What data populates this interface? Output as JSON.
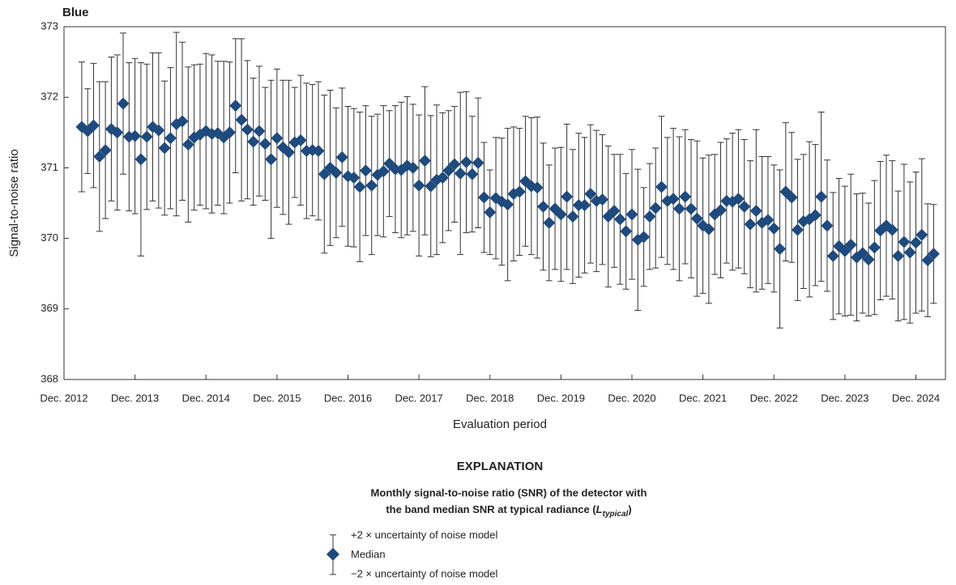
{
  "chart_data": {
    "type": "errorbar",
    "title": "Blue",
    "x_label": "Evaluation period",
    "y_label": "Signal-to-noise ratio",
    "x": [
      "2013-03",
      "2013-04",
      "2013-05",
      "2013-06",
      "2013-07",
      "2013-08",
      "2013-09",
      "2013-10",
      "2013-11",
      "2013-12",
      "2014-01",
      "2014-02",
      "2014-03",
      "2014-04",
      "2014-05",
      "2014-06",
      "2014-07",
      "2014-08",
      "2014-09",
      "2014-10",
      "2014-11",
      "2014-12",
      "2015-01",
      "2015-02",
      "2015-03",
      "2015-04",
      "2015-05",
      "2015-06",
      "2015-07",
      "2015-08",
      "2015-09",
      "2015-10",
      "2015-11",
      "2015-12",
      "2016-01",
      "2016-02",
      "2016-03",
      "2016-04",
      "2016-05",
      "2016-06",
      "2016-07",
      "2016-08",
      "2016-09",
      "2016-10",
      "2016-11",
      "2016-12",
      "2017-01",
      "2017-02",
      "2017-03",
      "2017-04",
      "2017-05",
      "2017-06",
      "2017-07",
      "2017-08",
      "2017-09",
      "2017-10",
      "2017-11",
      "2017-12",
      "2018-01",
      "2018-02",
      "2018-03",
      "2018-04",
      "2018-05",
      "2018-06",
      "2018-07",
      "2018-08",
      "2018-09",
      "2018-10",
      "2018-11",
      "2018-12",
      "2019-01",
      "2019-02",
      "2019-03",
      "2019-04",
      "2019-05",
      "2019-06",
      "2019-07",
      "2019-08",
      "2019-09",
      "2019-10",
      "2019-11",
      "2019-12",
      "2020-01",
      "2020-02",
      "2020-03",
      "2020-04",
      "2020-05",
      "2020-06",
      "2020-07",
      "2020-08",
      "2020-09",
      "2020-10",
      "2020-11",
      "2020-12",
      "2021-01",
      "2021-02",
      "2021-03",
      "2021-04",
      "2021-05",
      "2021-06",
      "2021-07",
      "2021-08",
      "2021-09",
      "2021-10",
      "2021-11",
      "2021-12",
      "2022-01",
      "2022-02",
      "2022-03",
      "2022-04",
      "2022-05",
      "2022-06",
      "2022-07",
      "2022-08",
      "2022-09",
      "2022-10",
      "2022-11",
      "2022-12",
      "2023-01",
      "2023-02",
      "2023-03",
      "2023-04",
      "2023-05",
      "2023-06",
      "2023-07",
      "2023-08",
      "2023-09",
      "2023-10",
      "2023-11",
      "2023-12",
      "2024-01",
      "2024-02",
      "2024-03",
      "2024-04",
      "2024-05",
      "2024-06",
      "2024-07",
      "2024-08",
      "2024-09",
      "2024-10",
      "2024-11",
      "2024-12",
      "2025-01",
      "2025-02",
      "2025-03"
    ],
    "series": [
      {
        "name": "Median",
        "color": "#1f4a7d",
        "values": [
          371.58,
          371.52,
          371.6,
          371.16,
          371.25,
          371.55,
          371.5,
          371.91,
          371.44,
          371.45,
          371.12,
          371.44,
          371.58,
          371.53,
          371.28,
          371.42,
          371.62,
          371.66,
          371.33,
          371.43,
          371.47,
          371.52,
          371.48,
          371.49,
          371.43,
          371.5,
          371.88,
          371.68,
          371.54,
          371.37,
          371.52,
          371.34,
          371.12,
          371.42,
          371.29,
          371.22,
          371.36,
          371.39,
          371.24,
          371.25,
          371.24,
          370.91,
          371.0,
          370.93,
          371.15,
          370.88,
          370.86,
          370.73,
          370.96,
          370.75,
          370.9,
          370.95,
          371.06,
          370.98,
          370.97,
          371.03,
          371.0,
          370.75,
          371.1,
          370.74,
          370.83,
          370.86,
          370.96,
          371.05,
          370.92,
          371.08,
          370.91,
          371.07,
          370.58,
          370.37,
          370.57,
          370.52,
          370.48,
          370.63,
          370.66,
          370.81,
          370.74,
          370.72,
          370.45,
          370.22,
          370.42,
          370.34,
          370.59,
          370.31,
          370.47,
          370.47,
          370.63,
          370.53,
          370.55,
          370.31,
          370.39,
          370.27,
          370.1,
          370.34,
          369.98,
          370.02,
          370.31,
          370.43,
          370.73,
          370.53,
          370.56,
          370.42,
          370.59,
          370.42,
          370.28,
          370.18,
          370.13,
          370.34,
          370.4,
          370.53,
          370.52,
          370.56,
          370.45,
          370.2,
          370.39,
          370.22,
          370.26,
          370.14,
          369.85,
          370.66,
          370.58,
          370.12,
          370.24,
          370.27,
          370.33,
          370.59,
          370.18,
          369.75,
          369.89,
          369.82,
          369.91,
          369.73,
          369.79,
          369.7,
          369.87,
          370.11,
          370.18,
          370.12,
          369.75,
          369.95,
          369.8,
          369.94,
          370.05,
          369.69,
          369.78
        ],
        "errors": [
          0.92,
          0.6,
          0.88,
          1.06,
          0.97,
          1.02,
          1.1,
          1.0,
          1.05,
          1.1,
          1.37,
          1.03,
          1.05,
          1.1,
          0.95,
          1.0,
          1.3,
          1.12,
          1.1,
          1.03,
          1.0,
          1.1,
          1.12,
          1.02,
          1.08,
          1.0,
          0.95,
          1.15,
          0.98,
          0.9,
          0.92,
          0.8,
          1.12,
          0.98,
          0.95,
          1.02,
          0.78,
          0.92,
          0.96,
          0.93,
          0.98,
          1.12,
          1.1,
          0.92,
          0.98,
          0.99,
          0.98,
          1.06,
          0.92,
          0.98,
          0.86,
          0.93,
          0.75,
          0.9,
          0.96,
          0.98,
          0.9,
          1.0,
          1.05,
          1.0,
          1.06,
          0.92,
          0.85,
          0.82,
          1.15,
          1.0,
          0.82,
          0.92,
          0.78,
          0.6,
          0.86,
          0.9,
          1.08,
          0.95,
          0.9,
          0.92,
          0.97,
          1.0,
          0.9,
          0.82,
          0.86,
          0.95,
          1.03,
          0.95,
          1.02,
          0.96,
          0.98,
          1.0,
          0.92,
          1.0,
          0.8,
          0.92,
          0.82,
          0.92,
          1.0,
          0.7,
          0.75,
          0.85,
          1.0,
          0.9,
          1.0,
          1.02,
          0.95,
          0.98,
          1.1,
          0.96,
          1.05,
          0.85,
          0.96,
          0.88,
          0.97,
          0.98,
          0.95,
          0.9,
          1.15,
          0.94,
          0.9,
          0.9,
          1.12,
          0.98,
          0.92,
          1.0,
          0.95,
          1.1,
          1.0,
          1.2,
          0.93,
          0.9,
          0.96,
          0.92,
          1.0,
          0.9,
          0.85,
          0.8,
          0.95,
          0.98,
          1.0,
          0.98,
          0.92,
          1.1,
          1.0,
          1.0,
          1.08,
          0.8,
          0.7
        ]
      }
    ],
    "xlim": [
      "2012-12",
      "2025-05"
    ],
    "xticks": [
      {
        "value": "2012-12",
        "label": "Dec. 2012"
      },
      {
        "value": "2013-12",
        "label": "Dec. 2013"
      },
      {
        "value": "2014-12",
        "label": "Dec. 2014"
      },
      {
        "value": "2015-12",
        "label": "Dec. 2015"
      },
      {
        "value": "2016-12",
        "label": "Dec. 2016"
      },
      {
        "value": "2017-12",
        "label": "Dec. 2017"
      },
      {
        "value": "2018-12",
        "label": "Dec. 2018"
      },
      {
        "value": "2019-12",
        "label": "Dec. 2019"
      },
      {
        "value": "2020-12",
        "label": "Dec. 2020"
      },
      {
        "value": "2021-12",
        "label": "Dec. 2021"
      },
      {
        "value": "2022-12",
        "label": "Dec. 2022"
      },
      {
        "value": "2023-12",
        "label": "Dec. 2023"
      },
      {
        "value": "2024-12",
        "label": "Dec. 2024"
      }
    ],
    "ylim": [
      368,
      373
    ],
    "yticks": [
      368,
      369,
      370,
      371,
      372,
      373
    ],
    "explanation": {
      "title": "EXPLANATION",
      "caption": [
        "Monthly signal-to-noise ratio (SNR) of the detector with",
        "the band median SNR at typical radiance ("
      ],
      "symbol": "L",
      "symbol_subscript": "typical",
      "caption_end": ")",
      "upper_label": "+2 × uncertainty of noise model",
      "lower_label": "−2 × uncertainty of noise model"
    }
  }
}
